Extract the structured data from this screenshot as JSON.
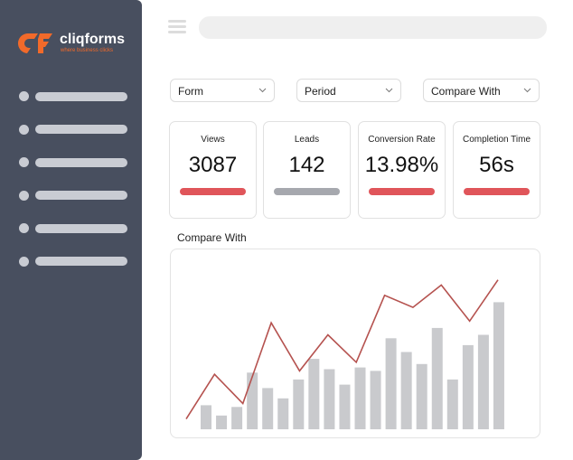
{
  "brand": {
    "name": "cliqforms",
    "tagline": "where business clicks"
  },
  "filters": [
    "Form",
    "Period",
    "Compare With"
  ],
  "metrics": [
    {
      "label": "Views",
      "value": "3087",
      "bar_color": "#e0555a"
    },
    {
      "label": "Leads",
      "value": "142",
      "bar_color": "#a6a8ae"
    },
    {
      "label": "Conversion Rate",
      "value": "13.98%",
      "bar_color": "#e0555a"
    },
    {
      "label": "Completion Time",
      "value": "56s",
      "bar_color": "#e0555a"
    }
  ],
  "chart_data": {
    "type": "bar",
    "title": "Compare With",
    "ylim": [
      0,
      100
    ],
    "series": [
      {
        "type": "bar",
        "color": "#c9cacd",
        "values": [
          14,
          8,
          13,
          33,
          24,
          18,
          29,
          41,
          35,
          26,
          36,
          34,
          53,
          45,
          38,
          59,
          29,
          49,
          55,
          74
        ]
      },
      {
        "type": "line",
        "color": "#b5524f",
        "values": [
          6,
          32,
          15,
          62,
          34,
          55,
          39,
          78,
          71,
          84,
          63,
          87
        ]
      }
    ]
  }
}
